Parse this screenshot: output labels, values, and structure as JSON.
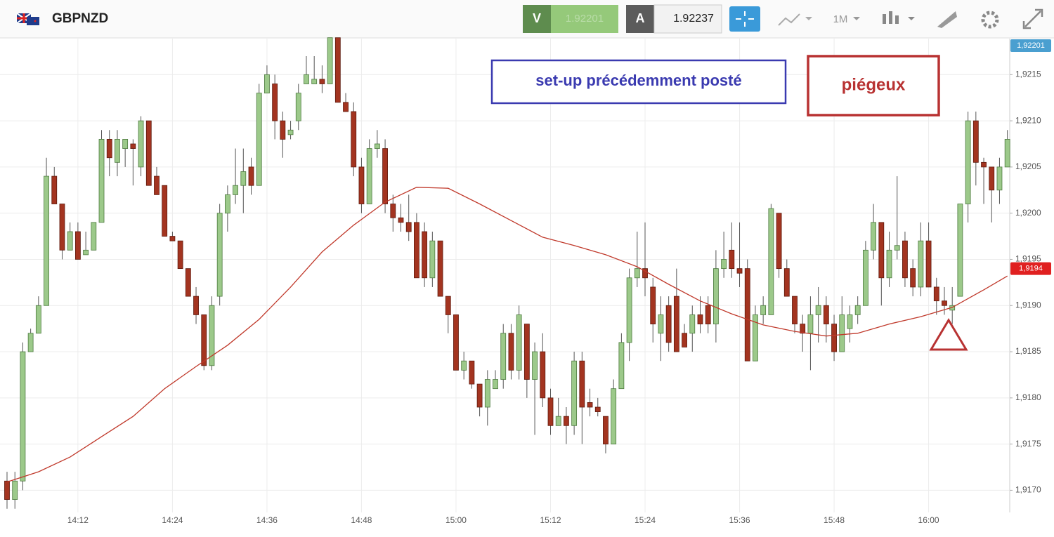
{
  "chart_data": {
    "type": "candlestick",
    "symbol": "GBPNZD",
    "toolbar": {
      "bid_label": "V",
      "bid": "1.92201",
      "ask_label": "A",
      "ask": "1.92237",
      "timeframe": "1M"
    },
    "annotations": [
      "set-up précédemment posté",
      "piégeux"
    ],
    "up_color": "#9cc98a",
    "down_color": "#a33420",
    "categories": [
      null,
      null,
      null,
      null,
      null,
      null,
      null,
      null,
      null,
      "14:12",
      null,
      null,
      null,
      null,
      null,
      null,
      null,
      null,
      null,
      null,
      null,
      "14:24",
      null,
      null,
      null,
      null,
      null,
      null,
      null,
      null,
      null,
      null,
      null,
      "14:36",
      null,
      null,
      null,
      null,
      null,
      null,
      null,
      null,
      null,
      null,
      null,
      "14:48",
      null,
      null,
      null,
      null,
      null,
      null,
      null,
      null,
      null,
      null,
      null,
      "15:00",
      null,
      null,
      null,
      null,
      null,
      null,
      null,
      null,
      null,
      null,
      null,
      "15:12",
      null,
      null,
      null,
      null,
      null,
      null,
      null,
      null,
      null,
      null,
      null,
      "15:24",
      null,
      null,
      null,
      null,
      null,
      null,
      null,
      null,
      null,
      null,
      null,
      "15:36",
      null,
      null,
      null,
      null,
      null,
      null,
      null,
      null,
      null,
      null,
      null,
      "15:48",
      null,
      null,
      null,
      null,
      null,
      null,
      null,
      null,
      null,
      null,
      null,
      "16:00",
      null,
      null,
      null,
      null,
      null,
      null,
      null,
      null,
      null,
      null
    ],
    "open": [
      1.9171,
      1.9169,
      1.9171,
      1.9185,
      1.9187,
      1.919,
      1.9204,
      1.9201,
      1.9196,
      1.9198,
      1.91955,
      1.9196,
      1.9199,
      1.9208,
      1.92055,
      1.9207,
      1.92075,
      1.9205,
      1.921,
      1.9204,
      1.9203,
      1.91975,
      1.9197,
      1.9194,
      1.9191,
      1.9189,
      1.91835,
      1.9191,
      1.92,
      1.9202,
      1.9203,
      1.9205,
      1.9203,
      1.9213,
      1.9214,
      1.921,
      1.92085,
      1.921,
      1.9214,
      1.9214,
      1.92145,
      1.9214,
      1.9219,
      1.9212,
      1.9211,
      1.9205,
      1.9201,
      1.9207,
      1.9207,
      1.9201,
      1.91995,
      1.9199,
      1.9199,
      1.9198,
      1.9193,
      1.9197,
      1.9191,
      1.9189,
      1.9183,
      1.9184,
      1.91815,
      1.9179,
      1.9181,
      1.9182,
      1.9187,
      1.9183,
      1.9188,
      1.9182,
      1.9185,
      1.918,
      1.9177,
      1.9178,
      1.9177,
      1.9184,
      1.91795,
      1.9179,
      1.9178,
      1.9175,
      1.9181,
      1.9186,
      1.9193,
      1.9194,
      1.9192,
      1.9187,
      1.919,
      1.9191,
      1.9187,
      1.9187,
      1.9189,
      1.919,
      1.9188,
      1.9194,
      1.9196,
      1.9194,
      1.9194,
      1.9184,
      1.9189,
      1.9189,
      1.92,
      1.9194,
      1.9191,
      1.9188,
      1.9187,
      1.9189,
      1.919,
      1.9188,
      1.9185,
      1.91875,
      1.9189,
      1.919,
      1.9196,
      1.9199,
      1.9193,
      1.9196,
      1.9197,
      1.9194,
      1.9192,
      1.9197,
      1.9192,
      1.91905,
      1.91895,
      1.9191,
      1.9201,
      1.921,
      1.92055,
      1.9205,
      1.92025,
      1.9205
    ],
    "high": [
      1.9172,
      1.9172,
      1.9186,
      1.91875,
      1.9191,
      1.9206,
      1.9205,
      1.9201,
      1.9199,
      1.9199,
      1.9198,
      1.9199,
      1.9209,
      1.9209,
      1.9209,
      1.9208,
      1.9208,
      1.92105,
      1.921,
      1.9205,
      1.9203,
      1.9198,
      1.9197,
      1.9194,
      1.9192,
      1.9189,
      1.9191,
      1.9201,
      1.9203,
      1.9207,
      1.9207,
      1.9206,
      1.9214,
      1.9216,
      1.9215,
      1.9211,
      1.921,
      1.9214,
      1.9217,
      1.9217,
      1.9216,
      1.9219,
      1.9219,
      1.9213,
      1.9212,
      1.9206,
      1.9208,
      1.9209,
      1.9208,
      1.9202,
      1.9201,
      1.9202,
      1.92,
      1.9199,
      1.9198,
      1.9197,
      1.9191,
      1.9189,
      1.9185,
      1.9184,
      1.91815,
      1.9183,
      1.9183,
      1.9188,
      1.9188,
      1.919,
      1.9188,
      1.9186,
      1.9187,
      1.9181,
      1.918,
      1.9179,
      1.9185,
      1.9185,
      1.9181,
      1.918,
      1.9178,
      1.9182,
      1.9187,
      1.9194,
      1.9198,
      1.9199,
      1.9193,
      1.9191,
      1.9191,
      1.9194,
      1.9188,
      1.919,
      1.9191,
      1.9191,
      1.9196,
      1.9198,
      1.9199,
      1.9199,
      1.9195,
      1.919,
      1.9191,
      1.9201,
      1.92,
      1.9195,
      1.9191,
      1.9189,
      1.9191,
      1.9192,
      1.9191,
      1.9189,
      1.9191,
      1.919,
      1.9191,
      1.9197,
      1.9201,
      1.9199,
      1.9198,
      1.9204,
      1.9198,
      1.9195,
      1.9199,
      1.9199,
      1.9193,
      1.9192,
      1.9192,
      1.9201,
      1.9211,
      1.9211,
      1.9206,
      1.9205,
      1.9206,
      1.9209
    ],
    "low": [
      1.9168,
      1.9168,
      1.917,
      1.9185,
      1.9187,
      1.919,
      1.9201,
      1.9195,
      1.9196,
      1.9195,
      1.91955,
      1.9196,
      1.9199,
      1.9204,
      1.9204,
      1.9205,
      1.9203,
      1.9204,
      1.9203,
      1.9202,
      1.91975,
      1.9197,
      1.9194,
      1.9191,
      1.9188,
      1.9183,
      1.9183,
      1.919,
      1.9198,
      1.9201,
      1.92,
      1.9202,
      1.9203,
      1.9213,
      1.9208,
      1.9206,
      1.9208,
      1.9209,
      1.9214,
      1.9214,
      1.9213,
      1.9214,
      1.9212,
      1.9211,
      1.9204,
      1.92,
      1.9201,
      1.9206,
      1.92,
      1.9198,
      1.9198,
      1.9197,
      1.9193,
      1.9192,
      1.9192,
      1.9191,
      1.9187,
      1.9183,
      1.9182,
      1.9181,
      1.9178,
      1.9177,
      1.9181,
      1.9181,
      1.9182,
      1.9182,
      1.918,
      1.9176,
      1.9179,
      1.9176,
      1.9177,
      1.9175,
      1.9176,
      1.9175,
      1.9178,
      1.9178,
      1.9174,
      1.9175,
      1.9181,
      1.9184,
      1.9192,
      1.9191,
      1.9186,
      1.9184,
      1.9185,
      1.9185,
      1.91855,
      1.9185,
      1.9187,
      1.9187,
      1.9186,
      1.9193,
      1.9193,
      1.9192,
      1.9184,
      1.9184,
      1.9188,
      1.9189,
      1.9193,
      1.9191,
      1.9187,
      1.9185,
      1.9183,
      1.9186,
      1.9186,
      1.9184,
      1.9185,
      1.9186,
      1.9188,
      1.919,
      1.9195,
      1.919,
      1.9192,
      1.9195,
      1.9192,
      1.9191,
      1.9191,
      1.9192,
      1.9189,
      1.9189,
      1.9188,
      1.9191,
      1.9199,
      1.9203,
      1.9201,
      1.9199,
      1.9201,
      1.9205
    ],
    "close": [
      1.9169,
      1.9171,
      1.9185,
      1.9187,
      1.919,
      1.9204,
      1.9201,
      1.9196,
      1.9198,
      1.9195,
      1.9196,
      1.9199,
      1.9208,
      1.9206,
      1.9208,
      1.9208,
      1.9207,
      1.921,
      1.9203,
      1.9202,
      1.91975,
      1.9197,
      1.9194,
      1.9191,
      1.9189,
      1.91835,
      1.919,
      1.92,
      1.9202,
      1.9203,
      1.92045,
      1.9203,
      1.9213,
      1.9215,
      1.921,
      1.9208,
      1.9209,
      1.9213,
      1.9215,
      1.92145,
      1.9214,
      1.9219,
      1.9212,
      1.9211,
      1.9205,
      1.9201,
      1.9207,
      1.92075,
      1.9201,
      1.91995,
      1.9199,
      1.9198,
      1.9193,
      1.9193,
      1.9197,
      1.9191,
      1.9189,
      1.9183,
      1.9184,
      1.91815,
      1.9179,
      1.9182,
      1.9182,
      1.9187,
      1.9183,
      1.9189,
      1.9182,
      1.9185,
      1.918,
      1.9177,
      1.9178,
      1.9177,
      1.9184,
      1.9179,
      1.9179,
      1.91785,
      1.9175,
      1.9181,
      1.9186,
      1.9193,
      1.9194,
      1.9193,
      1.9188,
      1.9189,
      1.9186,
      1.9185,
      1.91855,
      1.9189,
      1.9188,
      1.9188,
      1.9194,
      1.9195,
      1.9194,
      1.91935,
      1.9184,
      1.9189,
      1.919,
      1.92005,
      1.9194,
      1.9191,
      1.9188,
      1.9187,
      1.9189,
      1.919,
      1.9188,
      1.9185,
      1.9189,
      1.9189,
      1.919,
      1.9196,
      1.9199,
      1.9193,
      1.9196,
      1.91965,
      1.9193,
      1.9192,
      1.9197,
      1.9192,
      1.91905,
      1.919,
      1.919,
      1.9201,
      1.921,
      1.92055,
      1.9205,
      1.92025,
      1.9205,
      1.9208
    ],
    "moving_average": {
      "color": "#c0392b",
      "x": [
        0,
        4,
        8,
        12,
        16,
        20,
        24,
        28,
        32,
        36,
        40,
        44,
        48,
        52,
        56,
        60,
        64,
        68,
        72,
        76,
        80,
        84,
        88,
        92,
        96,
        100,
        104,
        108,
        112,
        116,
        120,
        124,
        127
      ],
      "values": [
        1.91709,
        1.9172,
        1.91736,
        1.91758,
        1.9178,
        1.9181,
        1.91834,
        1.91857,
        1.91885,
        1.9192,
        1.91958,
        1.91987,
        1.92012,
        1.92028,
        1.92027,
        1.9201,
        1.91992,
        1.91974,
        1.91965,
        1.91955,
        1.91942,
        1.91923,
        1.91905,
        1.91891,
        1.91879,
        1.91872,
        1.91867,
        1.9187,
        1.9188,
        1.91888,
        1.91898,
        1.91917,
        1.91932
      ]
    },
    "price_tags": [
      {
        "value": 1.92201,
        "label": "1,92201",
        "color": "#4a9fd0"
      },
      {
        "value": 1.9194,
        "label": "1,9194",
        "color": "#e02020"
      }
    ],
    "ylim": [
      1.91676,
      1.92189
    ],
    "yticks": [
      {
        "value": 1.917,
        "label": "1,9170"
      },
      {
        "value": 1.9175,
        "label": "1,9175"
      },
      {
        "value": 1.918,
        "label": "1,9180"
      },
      {
        "value": 1.9185,
        "label": "1,9185"
      },
      {
        "value": 1.919,
        "label": "1,9190"
      },
      {
        "value": 1.9195,
        "label": "1,9195"
      },
      {
        "value": 1.92,
        "label": "1,9200"
      },
      {
        "value": 1.9205,
        "label": "1,9205"
      },
      {
        "value": 1.921,
        "label": "1,9210"
      },
      {
        "value": 1.9215,
        "label": "1,9215"
      }
    ],
    "grid": true
  }
}
